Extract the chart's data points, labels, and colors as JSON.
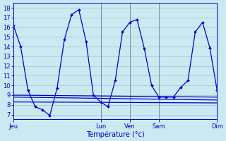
{
  "xlabel": "Température (°c)",
  "background_color": "#cce8f0",
  "line_color": "#0000cc",
  "grid_color": "#99bbcc",
  "vline_color": "#6688aa",
  "xlim": [
    0,
    28
  ],
  "ylim": [
    6.5,
    18.5
  ],
  "yticks": [
    7,
    8,
    9,
    10,
    11,
    12,
    13,
    14,
    15,
    16,
    17,
    18
  ],
  "day_positions": [
    0,
    12,
    16,
    20,
    28
  ],
  "day_labels": [
    "Jeu",
    "Lun",
    "Ven",
    "Sam",
    "Dim"
  ],
  "main_x": [
    0,
    1,
    2,
    3,
    4,
    5,
    6,
    7,
    8,
    9,
    10,
    11,
    12,
    13,
    14,
    15,
    16,
    17,
    18,
    19,
    20,
    21,
    22,
    23,
    24,
    25,
    26,
    27,
    28
  ],
  "main_y": [
    16.2,
    14.0,
    9.5,
    7.8,
    7.5,
    6.9,
    9.7,
    14.7,
    17.3,
    17.8,
    14.5,
    9.0,
    8.3,
    7.8,
    10.5,
    15.5,
    16.5,
    16.8,
    13.8,
    10.0,
    8.8,
    8.8,
    8.8,
    9.8,
    10.5,
    15.5,
    16.5,
    13.9,
    9.5
  ],
  "flat_lines": [
    {
      "x": [
        0,
        28
      ],
      "y": [
        9.0,
        8.8
      ]
    },
    {
      "x": [
        0,
        28
      ],
      "y": [
        8.8,
        8.5
      ]
    },
    {
      "x": [
        0,
        28
      ],
      "y": [
        8.3,
        8.2
      ]
    }
  ],
  "xlabel_fontsize": 7,
  "tick_labelsize": 6
}
